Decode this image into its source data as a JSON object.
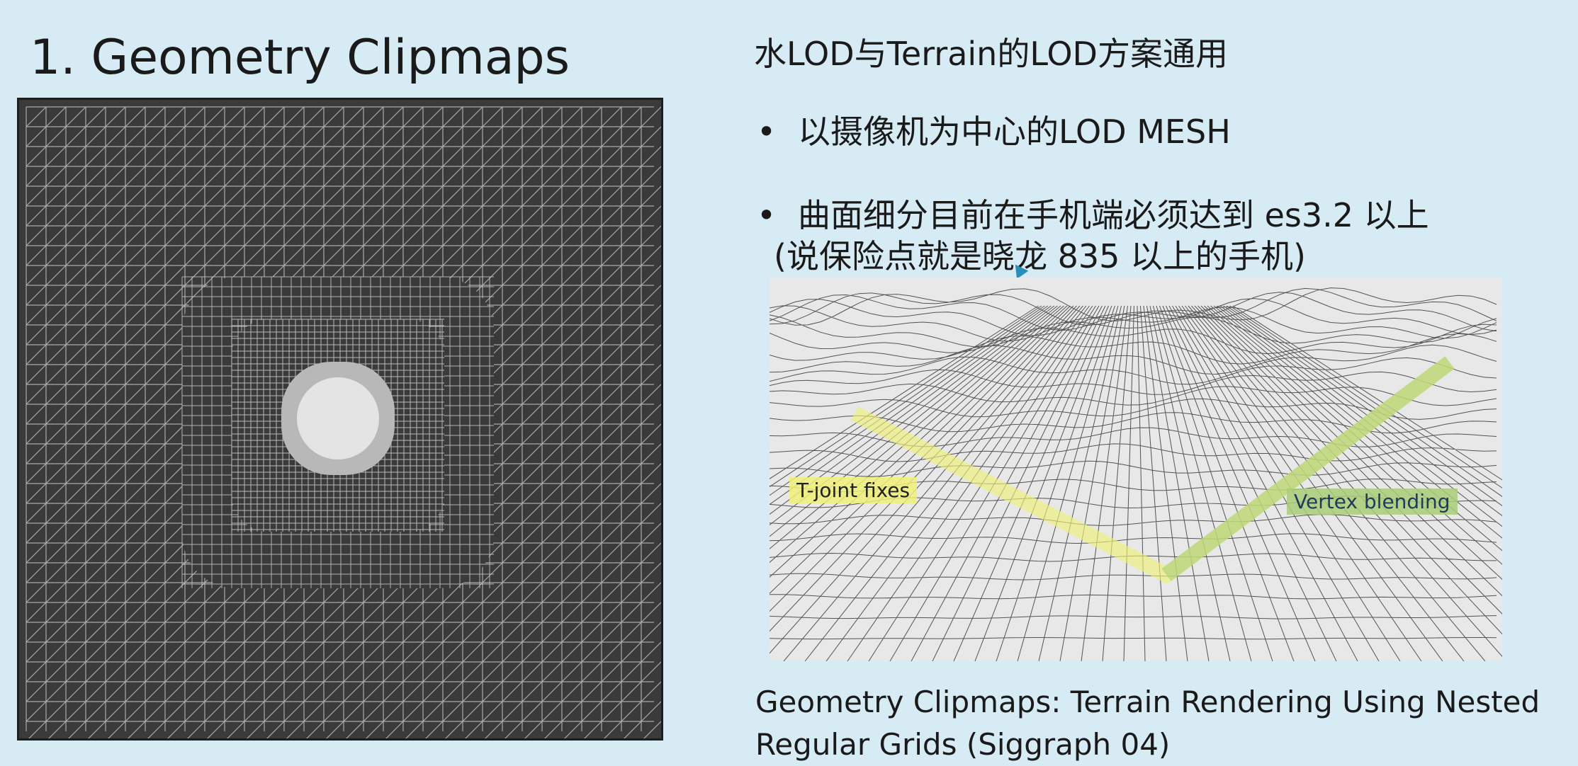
{
  "slide": {
    "title": "1. Geometry Clipmaps",
    "heading": "水LOD与Terrain的LOD方案通用",
    "bullets": [
      "以摄像机为中心的LOD MESH",
      "曲面细分目前在手机端必须达到 es3.2 以上"
    ],
    "bullet_continuation": "(说保险点就是晓龙 835 以上的手机)",
    "bullet_marker": "•",
    "figure_labels": {
      "tjoint": "T-joint fixes",
      "vertex": "Vertex blending"
    },
    "caption_line1": "Geometry Clipmaps: Terrain Rendering Using Nested",
    "caption_line2": "Regular Grids (Siggraph 04)"
  },
  "colors": {
    "background": "#d6ebf3",
    "grid_bg": "#3a3a3a",
    "grid_line": "#c8c8c8",
    "tjoint_highlight": "#f0f078",
    "vertex_highlight": "#aacd78"
  }
}
